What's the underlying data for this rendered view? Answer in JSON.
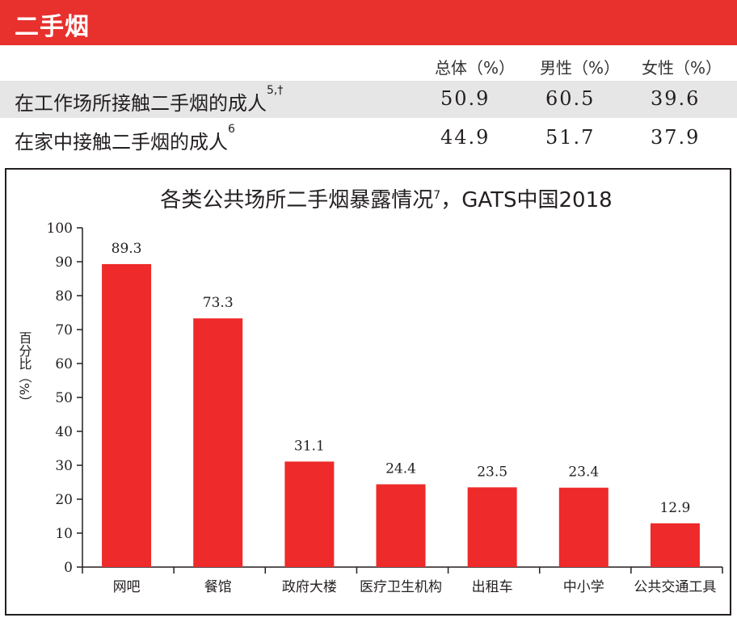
{
  "banner": {
    "title": "二手烟"
  },
  "stats_table": {
    "headers": [
      "总体（%）",
      "男性（%）",
      "女性（%）"
    ],
    "rows": [
      {
        "label": "在工作场所接触二手烟的成人",
        "note": "5,†",
        "values": [
          "50.9",
          "60.5",
          "39.6"
        ]
      },
      {
        "label": "在家中接触二手烟的成人",
        "note": "6",
        "values": [
          "44.9",
          "51.7",
          "37.9"
        ]
      }
    ]
  },
  "colors": {
    "accent": "#e8302d",
    "shade": "#e6e6e7"
  },
  "chart_data": {
    "type": "bar",
    "title": "各类公共场所二手烟暴露情况",
    "title_note": "7",
    "title_suffix": "，GATS中国2018",
    "ylabel": "百分比（%）",
    "ylim": [
      0,
      100
    ],
    "yticks": [
      0,
      10,
      20,
      30,
      40,
      50,
      60,
      70,
      80,
      90,
      100
    ],
    "categories": [
      "网吧",
      "餐馆",
      "政府大楼",
      "医疗卫生机构",
      "出租车",
      "中小学",
      "公共交通工具"
    ],
    "values": [
      89.3,
      73.3,
      31.1,
      24.4,
      23.5,
      23.4,
      12.9
    ],
    "value_labels": [
      "89.3",
      "73.3",
      "31.1",
      "24.4",
      "23.5",
      "23.4",
      "12.9"
    ],
    "bar_color": "#ee2a2a",
    "grid": false,
    "legend": "none"
  }
}
